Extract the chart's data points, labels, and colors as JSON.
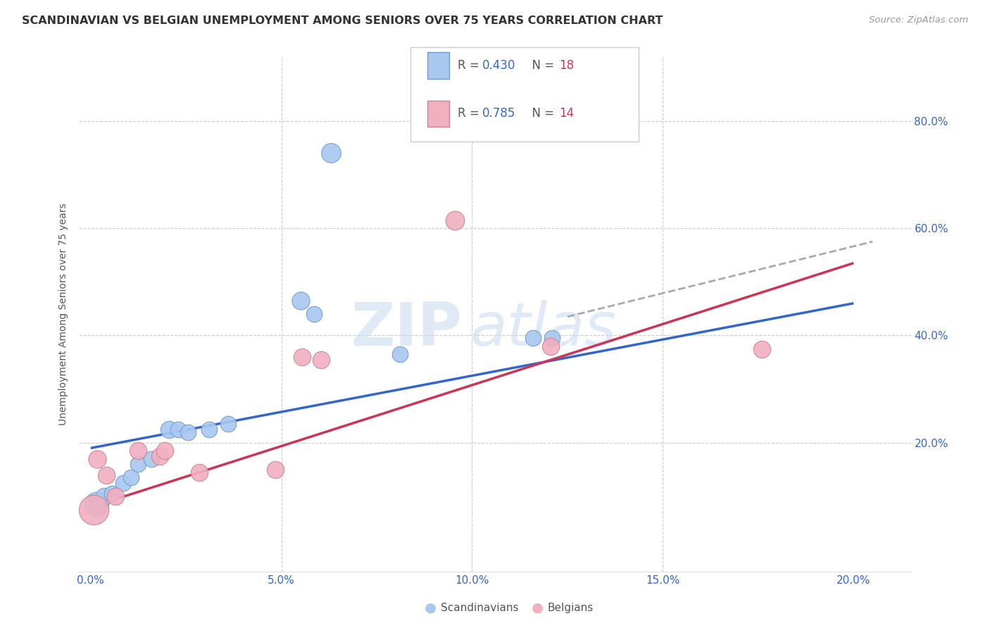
{
  "title": "SCANDINAVIAN VS BELGIAN UNEMPLOYMENT AMONG SENIORS OVER 75 YEARS CORRELATION CHART",
  "source": "Source: ZipAtlas.com",
  "ylabel": "Unemployment Among Seniors over 75 years",
  "x_tick_labels": [
    "0.0%",
    "",
    "",
    "",
    "",
    "5.0%",
    "",
    "",
    "",
    "",
    "10.0%",
    "",
    "",
    "",
    "",
    "15.0%",
    "",
    "",
    "",
    "",
    "20.0%"
  ],
  "x_tick_values": [
    0.0,
    1.0,
    2.0,
    3.0,
    4.0,
    5.0,
    6.0,
    7.0,
    8.0,
    9.0,
    10.0,
    11.0,
    12.0,
    13.0,
    14.0,
    15.0,
    16.0,
    17.0,
    18.0,
    19.0,
    20.0
  ],
  "xlim": [
    -0.3,
    21.5
  ],
  "ylim": [
    -4.0,
    92.0
  ],
  "y_tick_values": [
    20.0,
    40.0,
    60.0,
    80.0
  ],
  "y_tick_labels": [
    "20.0%",
    "40.0%",
    "60.0%",
    "80.0%"
  ],
  "scandinavian_points": [
    [
      0.15,
      8.5,
      28
    ],
    [
      0.35,
      10.0,
      14
    ],
    [
      0.55,
      10.5,
      12
    ],
    [
      0.85,
      12.5,
      12
    ],
    [
      1.05,
      13.5,
      12
    ],
    [
      1.25,
      16.0,
      12
    ],
    [
      1.6,
      17.0,
      12
    ],
    [
      2.05,
      22.5,
      14
    ],
    [
      2.3,
      22.5,
      12
    ],
    [
      2.55,
      22.0,
      12
    ],
    [
      3.1,
      22.5,
      12
    ],
    [
      3.6,
      23.5,
      12
    ],
    [
      5.5,
      46.5,
      15
    ],
    [
      5.85,
      44.0,
      12
    ],
    [
      6.3,
      74.0,
      18
    ],
    [
      8.1,
      36.5,
      12
    ],
    [
      11.6,
      39.5,
      12
    ],
    [
      12.1,
      39.5,
      12
    ]
  ],
  "belgian_points": [
    [
      0.08,
      7.5,
      42
    ],
    [
      0.18,
      17.0,
      15
    ],
    [
      0.42,
      14.0,
      14
    ],
    [
      0.65,
      10.0,
      14
    ],
    [
      1.25,
      18.5,
      14
    ],
    [
      1.82,
      17.5,
      14
    ],
    [
      1.95,
      18.5,
      14
    ],
    [
      2.85,
      14.5,
      14
    ],
    [
      4.85,
      15.0,
      14
    ],
    [
      5.55,
      36.0,
      14
    ],
    [
      6.05,
      35.5,
      14
    ],
    [
      9.55,
      61.5,
      17
    ],
    [
      12.05,
      38.0,
      14
    ],
    [
      17.6,
      37.5,
      14
    ]
  ],
  "blue_line_x": [
    0.0,
    20.0
  ],
  "blue_line_y": [
    19.0,
    46.0
  ],
  "pink_line_x": [
    0.0,
    20.0
  ],
  "pink_line_y": [
    8.0,
    53.5
  ],
  "dashed_line_x": [
    12.5,
    20.5
  ],
  "dashed_line_y": [
    43.5,
    57.5
  ],
  "scatter_blue": "#a8c8f0",
  "scatter_blue_edge": "#7099cc",
  "scatter_pink": "#f0b0c0",
  "scatter_pink_edge": "#cc8090",
  "line_blue": "#3366cc",
  "line_pink": "#cc3355",
  "line_dashed": "#aaaaaa",
  "watermark_text": "ZIPatlas",
  "watermark_color": "#c8d8f0",
  "bg_color": "#ffffff",
  "grid_color": "#cccccc",
  "legend_r_color": "#3366cc",
  "legend_n_color": "#cc3355",
  "bottom_legend": [
    "Scandinavians",
    "Belgians"
  ]
}
